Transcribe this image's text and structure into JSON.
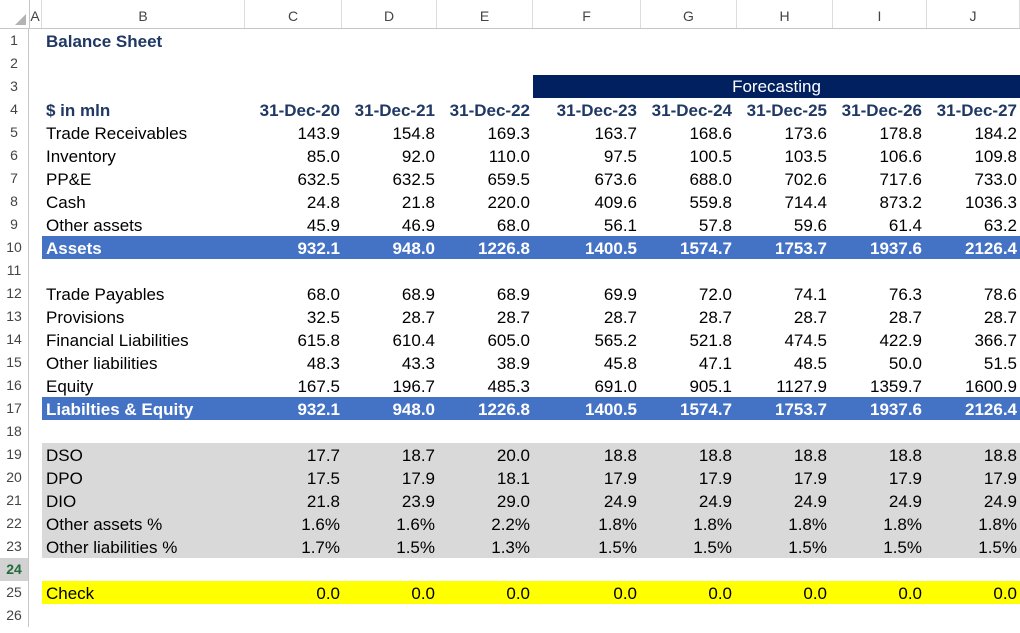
{
  "columns": [
    "A",
    "B",
    "C",
    "D",
    "E",
    "F",
    "G",
    "H",
    "I",
    "J"
  ],
  "row_numbers": [
    "1",
    "2",
    "3",
    "4",
    "5",
    "6",
    "7",
    "8",
    "9",
    "10",
    "11",
    "12",
    "13",
    "14",
    "15",
    "16",
    "17",
    "18",
    "19",
    "20",
    "21",
    "22",
    "23",
    "24",
    "25",
    "26"
  ],
  "selected_row": "24",
  "title": "Balance Sheet",
  "forecast_label": "Forecasting",
  "units_label": "$ in mln",
  "dates": [
    "31-Dec-20",
    "31-Dec-21",
    "31-Dec-22",
    "31-Dec-23",
    "31-Dec-24",
    "31-Dec-25",
    "31-Dec-26",
    "31-Dec-27"
  ],
  "rows": [
    {
      "row": 5,
      "label": "Trade Receivables",
      "values": [
        "143.9",
        "154.8",
        "169.3",
        "163.7",
        "168.6",
        "173.6",
        "178.8",
        "184.2"
      ]
    },
    {
      "row": 6,
      "label": "Inventory",
      "values": [
        "85.0",
        "92.0",
        "110.0",
        "97.5",
        "100.5",
        "103.5",
        "106.6",
        "109.8"
      ]
    },
    {
      "row": 7,
      "label": "PP&E",
      "values": [
        "632.5",
        "632.5",
        "659.5",
        "673.6",
        "688.0",
        "702.6",
        "717.6",
        "733.0"
      ]
    },
    {
      "row": 8,
      "label": "Cash",
      "values": [
        "24.8",
        "21.8",
        "220.0",
        "409.6",
        "559.8",
        "714.4",
        "873.2",
        "1036.3"
      ]
    },
    {
      "row": 9,
      "label": "Other assets",
      "values": [
        "45.9",
        "46.9",
        "68.0",
        "56.1",
        "57.8",
        "59.6",
        "61.4",
        "63.2"
      ]
    },
    {
      "row": 10,
      "label": "Assets",
      "values": [
        "932.1",
        "948.0",
        "1226.8",
        "1400.5",
        "1574.7",
        "1753.7",
        "1937.6",
        "2126.4"
      ],
      "style": "total"
    },
    {
      "row": 12,
      "label": "Trade Payables",
      "values": [
        "68.0",
        "68.9",
        "68.9",
        "69.9",
        "72.0",
        "74.1",
        "76.3",
        "78.6"
      ]
    },
    {
      "row": 13,
      "label": "Provisions",
      "values": [
        "32.5",
        "28.7",
        "28.7",
        "28.7",
        "28.7",
        "28.7",
        "28.7",
        "28.7"
      ]
    },
    {
      "row": 14,
      "label": "Financial Liabilities",
      "values": [
        "615.8",
        "610.4",
        "605.0",
        "565.2",
        "521.8",
        "474.5",
        "422.9",
        "366.7"
      ]
    },
    {
      "row": 15,
      "label": "Other liabilities",
      "values": [
        "48.3",
        "43.3",
        "38.9",
        "45.8",
        "47.1",
        "48.5",
        "50.0",
        "51.5"
      ]
    },
    {
      "row": 16,
      "label": "Equity",
      "values": [
        "167.5",
        "196.7",
        "485.3",
        "691.0",
        "905.1",
        "1127.9",
        "1359.7",
        "1600.9"
      ]
    },
    {
      "row": 17,
      "label": "Liabilties & Equity",
      "values": [
        "932.1",
        "948.0",
        "1226.8",
        "1400.5",
        "1574.7",
        "1753.7",
        "1937.6",
        "2126.4"
      ],
      "style": "total"
    },
    {
      "row": 19,
      "label": "DSO",
      "values": [
        "17.7",
        "18.7",
        "20.0",
        "18.8",
        "18.8",
        "18.8",
        "18.8",
        "18.8"
      ],
      "style": "ratio"
    },
    {
      "row": 20,
      "label": "DPO",
      "values": [
        "17.5",
        "17.9",
        "18.1",
        "17.9",
        "17.9",
        "17.9",
        "17.9",
        "17.9"
      ],
      "style": "ratio"
    },
    {
      "row": 21,
      "label": "DIO",
      "values": [
        "21.8",
        "23.9",
        "29.0",
        "24.9",
        "24.9",
        "24.9",
        "24.9",
        "24.9"
      ],
      "style": "ratio"
    },
    {
      "row": 22,
      "label": "Other assets %",
      "values": [
        "1.6%",
        "1.6%",
        "2.2%",
        "1.8%",
        "1.8%",
        "1.8%",
        "1.8%",
        "1.8%"
      ],
      "style": "ratio"
    },
    {
      "row": 23,
      "label": "Other liabilities %",
      "values": [
        "1.7%",
        "1.5%",
        "1.3%",
        "1.5%",
        "1.5%",
        "1.5%",
        "1.5%",
        "1.5%"
      ],
      "style": "ratio"
    },
    {
      "row": 25,
      "label": "Check",
      "values": [
        "0.0",
        "0.0",
        "0.0",
        "0.0",
        "0.0",
        "0.0",
        "0.0",
        "0.0"
      ],
      "style": "check"
    }
  ],
  "colors": {
    "total_fill": "#4472c4",
    "forecast_fill": "#002060",
    "ratio_fill": "#d9d9d9",
    "check_fill": "#ffff00",
    "title_text": "#203864"
  }
}
